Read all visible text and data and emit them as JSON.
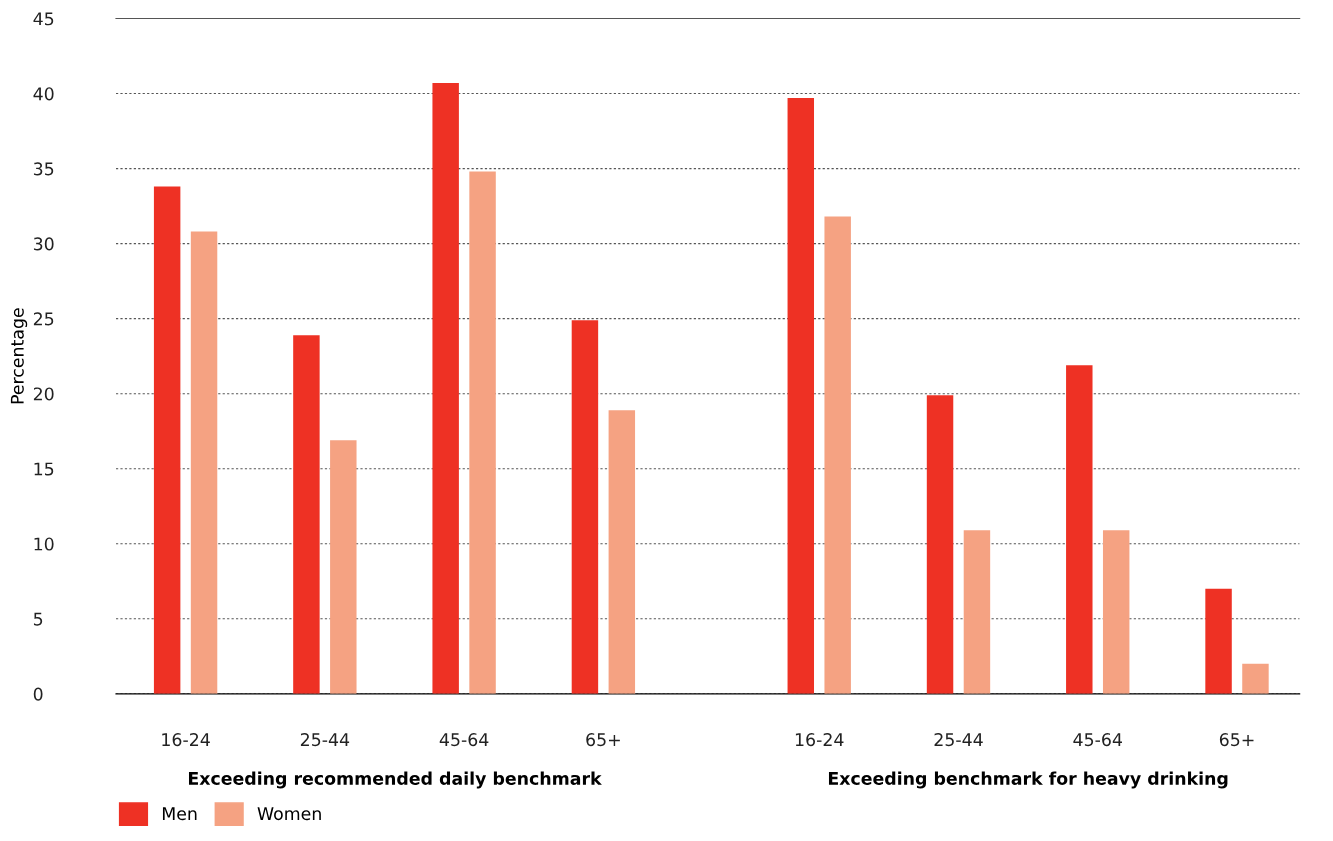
{
  "chart_data": {
    "type": "bar",
    "ylabel": "Percentage",
    "categories": [
      "16-24",
      "25-44",
      "45-64",
      "65+",
      "16-24",
      "25-44",
      "45-64",
      "65+"
    ],
    "series": [
      {
        "name": "Men",
        "color": "#ee3124",
        "values": [
          33.8,
          23.9,
          40.7,
          24.9,
          39.7,
          19.9,
          21.9,
          7
        ]
      },
      {
        "name": "Women",
        "color": "#f5a282",
        "values": [
          30.8,
          16.9,
          34.8,
          18.9,
          31.8,
          10.9,
          10.9,
          2
        ]
      }
    ],
    "ylim": [
      0,
      45
    ],
    "yticks": [
      0,
      5,
      10,
      15,
      20,
      25,
      30,
      35,
      40,
      45
    ],
    "grid": "y",
    "legend": "bottom left",
    "annotations": [
      "Exceeding recommended daily benchmark",
      "Exceeding benchmark for heavy drinking"
    ]
  }
}
